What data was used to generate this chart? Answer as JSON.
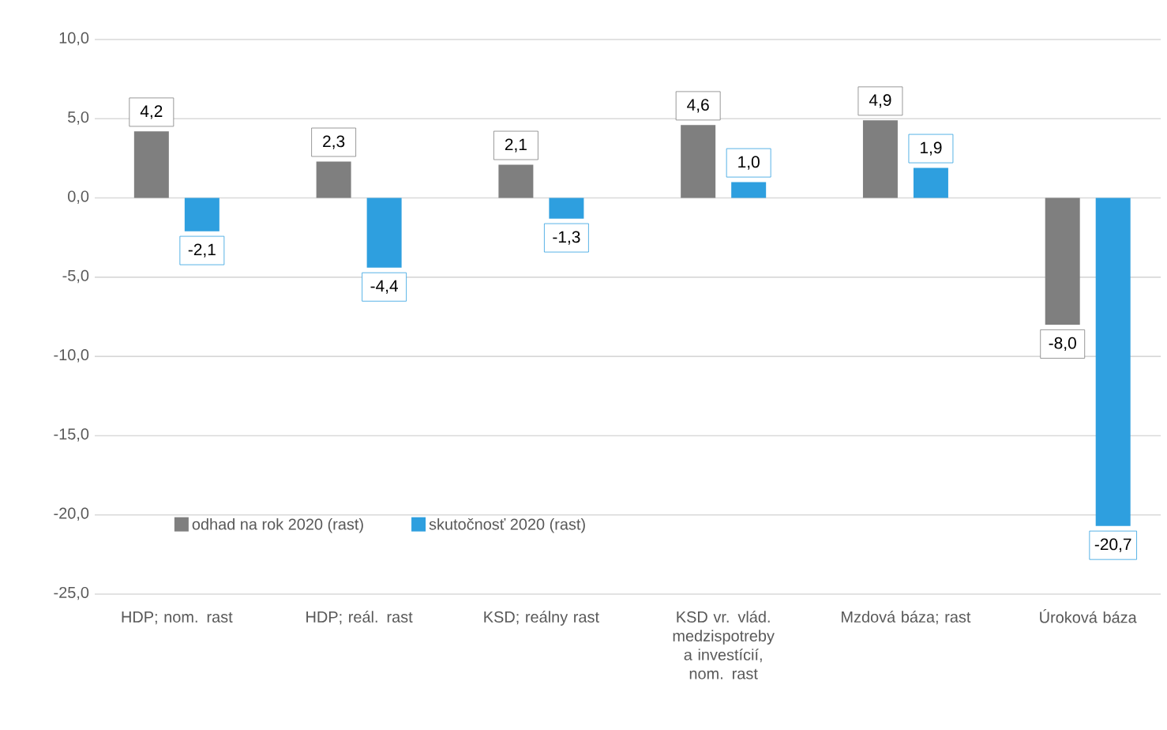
{
  "chart_data": {
    "type": "bar",
    "categories": [
      "HDP; nom. rast",
      "HDP; reál. rast",
      "KSD; reálny rast",
      "KSD vr. vlád. medzispotreby a investícií, nom. rast",
      "Mzdová báza; rast",
      "Úroková báza"
    ],
    "series": [
      {
        "name": "odhad na rok 2020 (rast)",
        "color": "#7f7f7f",
        "values": [
          4.2,
          2.3,
          2.1,
          4.6,
          4.9,
          -8.0
        ],
        "value_labels": [
          "4,2",
          "2,3",
          "2,1",
          "4,6",
          "4,9",
          "-8,0"
        ]
      },
      {
        "name": "skutočnosť 2020 (rast)",
        "color": "#2e9fdf",
        "values": [
          -2.1,
          -4.4,
          -1.3,
          1.0,
          1.9,
          -20.7
        ],
        "value_labels": [
          "-2,1",
          "-4,4",
          "-1,3",
          "1,0",
          "1,9",
          "-20,7"
        ]
      }
    ],
    "ylim": [
      -25,
      10
    ],
    "yticks": [
      {
        "value": -25,
        "label": "-25,0"
      },
      {
        "value": -20,
        "label": "-20,0"
      },
      {
        "value": -15,
        "label": "-15,0"
      },
      {
        "value": -10,
        "label": "-10,0"
      },
      {
        "value": -5,
        "label": "-5,0"
      },
      {
        "value": 0,
        "label": "0,0"
      },
      {
        "value": 5,
        "label": "5,0"
      },
      {
        "value": 10,
        "label": "10,0"
      }
    ],
    "grid": "y",
    "legend": "bottom left"
  }
}
